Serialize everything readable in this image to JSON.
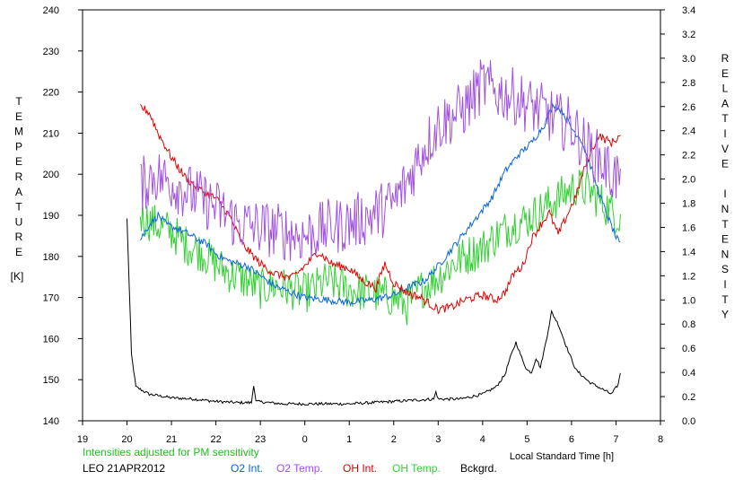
{
  "chart_data": {
    "type": "line",
    "x_unit_label": "Local Standard Time [h]",
    "x_ticks": [
      "19",
      "20",
      "21",
      "22",
      "23",
      "0",
      "1",
      "2",
      "3",
      "4",
      "5",
      "6",
      "7",
      "8"
    ],
    "xlim": [
      19,
      32
    ],
    "left_axis": {
      "label": "TEMPERATURE",
      "unit": "[K]",
      "ylim": [
        140,
        240
      ],
      "ticks": [
        140,
        150,
        160,
        170,
        180,
        190,
        200,
        210,
        220,
        230,
        240
      ]
    },
    "right_axis": {
      "label": "RELATIVE INTENSITY",
      "ylim": [
        0,
        3.4
      ],
      "ticks": [
        "0.0",
        "0.2",
        "0.4",
        "0.6",
        "0.8",
        "1.0",
        "1.2",
        "1.4",
        "1.6",
        "1.8",
        "2.0",
        "2.2",
        "2.4",
        "2.6",
        "2.8",
        "3.0",
        "3.2",
        "3.4"
      ]
    },
    "note": "Intensities adjusted for PM sensitivity",
    "station_date": "LEO 21APR2012",
    "grid": false,
    "legend_position": "bottom",
    "series": [
      {
        "name": "O2 Int.",
        "axis": "right",
        "color": "#0a64dc",
        "noise": 0.03,
        "points": [
          [
            20.3,
            1.5
          ],
          [
            20.5,
            1.62
          ],
          [
            20.7,
            1.7
          ],
          [
            20.9,
            1.62
          ],
          [
            21.2,
            1.58
          ],
          [
            21.5,
            1.52
          ],
          [
            21.8,
            1.46
          ],
          [
            22.0,
            1.38
          ],
          [
            22.3,
            1.32
          ],
          [
            22.7,
            1.28
          ],
          [
            23.0,
            1.2
          ],
          [
            23.3,
            1.12
          ],
          [
            23.7,
            1.06
          ],
          [
            24.0,
            1.02
          ],
          [
            24.5,
            1.0
          ],
          [
            25.0,
            0.98
          ],
          [
            25.5,
            1.0
          ],
          [
            26.0,
            1.04
          ],
          [
            26.3,
            1.1
          ],
          [
            26.7,
            1.16
          ],
          [
            27.0,
            1.28
          ],
          [
            27.3,
            1.42
          ],
          [
            27.6,
            1.56
          ],
          [
            27.9,
            1.7
          ],
          [
            28.2,
            1.84
          ],
          [
            28.5,
            2.06
          ],
          [
            28.8,
            2.2
          ],
          [
            29.1,
            2.3
          ],
          [
            29.4,
            2.46
          ],
          [
            29.6,
            2.62
          ],
          [
            29.8,
            2.56
          ],
          [
            30.0,
            2.42
          ],
          [
            30.2,
            2.34
          ],
          [
            30.4,
            2.14
          ],
          [
            30.6,
            1.9
          ],
          [
            30.8,
            1.7
          ],
          [
            31.0,
            1.52
          ],
          [
            31.1,
            1.45
          ]
        ]
      },
      {
        "name": "O2 Temp.",
        "axis": "left",
        "color": "#a050e0",
        "noise": 7,
        "points": [
          [
            20.3,
            197
          ],
          [
            20.6,
            200
          ],
          [
            21.0,
            198
          ],
          [
            21.5,
            195
          ],
          [
            22.0,
            192
          ],
          [
            22.5,
            188
          ],
          [
            23.0,
            187
          ],
          [
            23.5,
            186
          ],
          [
            24.0,
            185
          ],
          [
            24.5,
            187
          ],
          [
            25.0,
            188
          ],
          [
            25.5,
            190
          ],
          [
            26.0,
            193
          ],
          [
            26.3,
            198
          ],
          [
            26.6,
            205
          ],
          [
            27.0,
            212
          ],
          [
            27.3,
            214
          ],
          [
            27.6,
            216
          ],
          [
            28.0,
            222
          ],
          [
            28.3,
            220
          ],
          [
            28.7,
            219
          ],
          [
            29.0,
            217
          ],
          [
            29.4,
            215
          ],
          [
            29.7,
            213
          ],
          [
            30.0,
            212
          ],
          [
            30.3,
            207
          ],
          [
            30.6,
            204
          ],
          [
            30.9,
            200
          ],
          [
            31.1,
            199
          ]
        ]
      },
      {
        "name": "OH Int.",
        "axis": "right",
        "color": "#e00000",
        "noise": 0.035,
        "points": [
          [
            20.3,
            2.6
          ],
          [
            20.5,
            2.55
          ],
          [
            20.7,
            2.38
          ],
          [
            21.0,
            2.18
          ],
          [
            21.3,
            2.02
          ],
          [
            21.6,
            1.92
          ],
          [
            22.0,
            1.84
          ],
          [
            22.3,
            1.7
          ],
          [
            22.6,
            1.46
          ],
          [
            23.0,
            1.3
          ],
          [
            23.3,
            1.22
          ],
          [
            23.7,
            1.18
          ],
          [
            24.0,
            1.28
          ],
          [
            24.3,
            1.4
          ],
          [
            24.6,
            1.3
          ],
          [
            25.0,
            1.26
          ],
          [
            25.3,
            1.16
          ],
          [
            25.6,
            1.1
          ],
          [
            25.8,
            1.3
          ],
          [
            26.0,
            1.14
          ],
          [
            26.3,
            1.06
          ],
          [
            26.6,
            1.02
          ],
          [
            27.0,
            0.92
          ],
          [
            27.3,
            0.94
          ],
          [
            27.6,
            1.0
          ],
          [
            28.0,
            1.04
          ],
          [
            28.3,
            1.0
          ],
          [
            28.5,
            1.06
          ],
          [
            28.7,
            1.22
          ],
          [
            28.9,
            1.28
          ],
          [
            29.1,
            1.5
          ],
          [
            29.3,
            1.62
          ],
          [
            29.5,
            1.72
          ],
          [
            29.7,
            1.54
          ],
          [
            29.9,
            1.7
          ],
          [
            30.1,
            1.86
          ],
          [
            30.3,
            2.1
          ],
          [
            30.6,
            2.36
          ],
          [
            30.9,
            2.3
          ],
          [
            31.1,
            2.36
          ]
        ]
      },
      {
        "name": "OH Temp.",
        "axis": "left",
        "color": "#30d030",
        "noise": 5,
        "points": [
          [
            20.3,
            190
          ],
          [
            20.6,
            188
          ],
          [
            21.0,
            186
          ],
          [
            21.3,
            183
          ],
          [
            21.7,
            181
          ],
          [
            22.0,
            178
          ],
          [
            22.3,
            176
          ],
          [
            22.7,
            174
          ],
          [
            23.0,
            172
          ],
          [
            23.3,
            173
          ],
          [
            23.7,
            172
          ],
          [
            24.0,
            171
          ],
          [
            24.5,
            174
          ],
          [
            25.0,
            172
          ],
          [
            25.5,
            171
          ],
          [
            26.0,
            170
          ],
          [
            26.3,
            168
          ],
          [
            26.6,
            172
          ],
          [
            27.0,
            175
          ],
          [
            27.3,
            178
          ],
          [
            27.6,
            180
          ],
          [
            28.0,
            182
          ],
          [
            28.3,
            185
          ],
          [
            28.7,
            188
          ],
          [
            29.0,
            189
          ],
          [
            29.4,
            192
          ],
          [
            29.8,
            195
          ],
          [
            30.1,
            197
          ],
          [
            30.4,
            196
          ],
          [
            30.7,
            193
          ],
          [
            31.0,
            190
          ],
          [
            31.1,
            190
          ]
        ]
      },
      {
        "name": "Bckgrd.",
        "axis": "right",
        "color": "#000000",
        "noise": 0.012,
        "points": [
          [
            20.0,
            1.67
          ],
          [
            20.1,
            0.55
          ],
          [
            20.2,
            0.28
          ],
          [
            20.5,
            0.22
          ],
          [
            21.0,
            0.19
          ],
          [
            21.5,
            0.18
          ],
          [
            22.0,
            0.16
          ],
          [
            22.5,
            0.15
          ],
          [
            22.8,
            0.15
          ],
          [
            22.85,
            0.3
          ],
          [
            22.9,
            0.16
          ],
          [
            23.5,
            0.14
          ],
          [
            24.0,
            0.14
          ],
          [
            25.0,
            0.14
          ],
          [
            26.0,
            0.16
          ],
          [
            26.9,
            0.18
          ],
          [
            26.95,
            0.24
          ],
          [
            27.0,
            0.18
          ],
          [
            27.5,
            0.18
          ],
          [
            28.0,
            0.22
          ],
          [
            28.3,
            0.28
          ],
          [
            28.5,
            0.38
          ],
          [
            28.6,
            0.5
          ],
          [
            28.75,
            0.65
          ],
          [
            28.9,
            0.5
          ],
          [
            29.0,
            0.42
          ],
          [
            29.1,
            0.4
          ],
          [
            29.2,
            0.52
          ],
          [
            29.3,
            0.44
          ],
          [
            29.45,
            0.7
          ],
          [
            29.55,
            0.9
          ],
          [
            29.7,
            0.8
          ],
          [
            29.9,
            0.6
          ],
          [
            30.1,
            0.42
          ],
          [
            30.4,
            0.32
          ],
          [
            30.7,
            0.26
          ],
          [
            30.9,
            0.22
          ],
          [
            31.05,
            0.3
          ],
          [
            31.1,
            0.4
          ]
        ]
      }
    ]
  }
}
